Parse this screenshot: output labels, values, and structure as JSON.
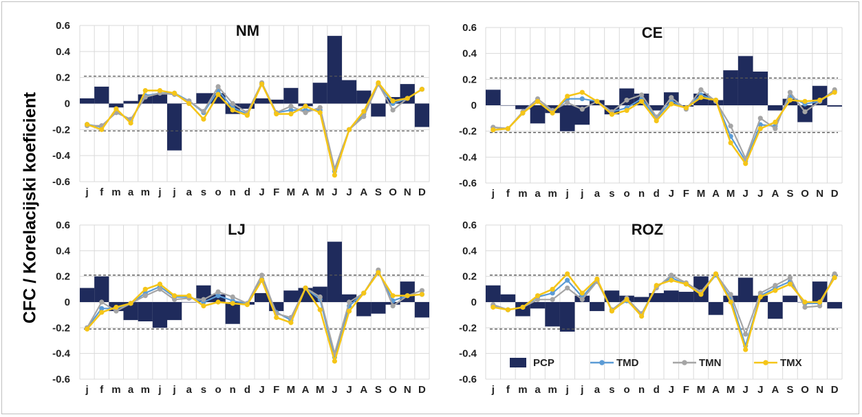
{
  "figure": {
    "ylabel": "CFC / Korelacijski koeficient"
  },
  "legend": {
    "items": [
      {
        "name": "PCP",
        "kind": "bar",
        "color": "#1f2b5c"
      },
      {
        "name": "TMD",
        "kind": "line",
        "color": "#5b9bd5"
      },
      {
        "name": "TMN",
        "kind": "line",
        "color": "#a5a5a5"
      },
      {
        "name": "TMX",
        "kind": "line",
        "color": "#f5c518"
      }
    ]
  },
  "colors": {
    "PCP": "#1f2b5c",
    "TMD": "#5b9bd5",
    "TMN": "#a5a5a5",
    "TMX": "#f5c518",
    "threshold": "#555555",
    "grid": "#d9d9d9"
  },
  "chart_data": [
    {
      "type": "bar+line",
      "title": "NM",
      "categories": [
        "j",
        "f",
        "m",
        "a",
        "m",
        "j",
        "j",
        "a",
        "s",
        "o",
        "n",
        "d",
        "J",
        "F",
        "M",
        "A",
        "M",
        "J",
        "J",
        "A",
        "S",
        "O",
        "N",
        "D"
      ],
      "ylim": [
        -0.6,
        0.6
      ],
      "yticks": [
        "0.6",
        "0.4",
        "0.2",
        "0",
        "-0.2",
        "-0.4",
        "-0.6"
      ],
      "grid": true,
      "significance_lines": [
        0.21,
        -0.21
      ],
      "series": [
        {
          "name": "PCP",
          "type": "bar",
          "values": [
            0.04,
            0.13,
            -0.03,
            0.02,
            0.07,
            0.07,
            -0.36,
            0.0,
            0.08,
            0.08,
            -0.08,
            -0.04,
            0.04,
            0.03,
            0.12,
            -0.02,
            0.16,
            0.52,
            0.18,
            0.1,
            -0.1,
            0.05,
            0.15,
            -0.18
          ]
        },
        {
          "name": "TMD",
          "type": "line",
          "values": [
            -0.16,
            -0.18,
            -0.06,
            -0.13,
            0.06,
            0.08,
            0.08,
            0.02,
            -0.07,
            0.1,
            -0.03,
            -0.08,
            0.15,
            -0.07,
            -0.05,
            -0.05,
            -0.05,
            -0.52,
            -0.2,
            -0.08,
            0.15,
            0.0,
            0.04,
            0.11
          ]
        },
        {
          "name": "TMN",
          "type": "line",
          "values": [
            -0.17,
            -0.17,
            -0.07,
            -0.12,
            0.05,
            0.08,
            0.07,
            0.02,
            -0.06,
            0.13,
            0.0,
            -0.07,
            0.16,
            -0.07,
            -0.02,
            -0.07,
            -0.03,
            -0.5,
            -0.2,
            -0.1,
            0.15,
            -0.05,
            0.04,
            0.11
          ]
        },
        {
          "name": "TMX",
          "type": "line",
          "values": [
            -0.16,
            -0.2,
            -0.04,
            -0.15,
            0.1,
            0.1,
            0.08,
            0.0,
            -0.12,
            0.07,
            -0.05,
            -0.09,
            0.15,
            -0.08,
            -0.08,
            -0.02,
            -0.07,
            -0.55,
            -0.2,
            -0.06,
            0.16,
            0.02,
            0.04,
            0.11
          ]
        }
      ]
    },
    {
      "type": "bar+line",
      "title": "CE",
      "categories": [
        "j",
        "f",
        "m",
        "a",
        "m",
        "j",
        "j",
        "a",
        "s",
        "o",
        "n",
        "d",
        "J",
        "F",
        "M",
        "A",
        "M",
        "J",
        "J",
        "A",
        "S",
        "O",
        "N",
        "D"
      ],
      "ylim": [
        -0.6,
        0.6
      ],
      "yticks": [
        "0.6",
        "0.4",
        "0.2",
        "0",
        "-0.2",
        "-0.4",
        "-0.6"
      ],
      "grid": true,
      "significance_lines": [
        0.21,
        -0.21
      ],
      "series": [
        {
          "name": "PCP",
          "type": "bar",
          "values": [
            0.12,
            0.0,
            -0.03,
            -0.14,
            -0.06,
            -0.2,
            -0.15,
            0.04,
            -0.07,
            0.13,
            0.09,
            -0.04,
            0.1,
            -0.01,
            0.09,
            0.04,
            0.27,
            0.38,
            0.26,
            -0.04,
            0.05,
            -0.13,
            0.15,
            -0.01
          ]
        },
        {
          "name": "TMD",
          "type": "line",
          "values": [
            -0.17,
            -0.18,
            -0.06,
            0.03,
            -0.05,
            0.05,
            0.05,
            0.03,
            -0.05,
            -0.02,
            0.05,
            -0.1,
            0.03,
            -0.02,
            0.08,
            0.04,
            -0.24,
            -0.43,
            -0.15,
            -0.16,
            0.07,
            0.01,
            0.03,
            0.11
          ]
        },
        {
          "name": "TMN",
          "type": "line",
          "values": [
            -0.17,
            -0.18,
            -0.05,
            0.05,
            -0.04,
            0.02,
            -0.03,
            0.03,
            -0.05,
            0.04,
            0.08,
            -0.09,
            0.06,
            -0.03,
            0.12,
            0.03,
            -0.16,
            -0.41,
            -0.1,
            -0.18,
            0.1,
            -0.05,
            0.03,
            0.12
          ]
        },
        {
          "name": "TMX",
          "type": "line",
          "values": [
            -0.19,
            -0.18,
            -0.06,
            0.03,
            -0.06,
            0.07,
            0.1,
            0.03,
            -0.07,
            -0.04,
            0.03,
            -0.12,
            0.01,
            -0.02,
            0.06,
            0.04,
            -0.29,
            -0.45,
            -0.18,
            -0.13,
            0.04,
            0.03,
            0.04,
            0.1
          ]
        }
      ]
    },
    {
      "type": "bar+line",
      "title": "LJ",
      "categories": [
        "j",
        "f",
        "m",
        "a",
        "m",
        "j",
        "j",
        "a",
        "s",
        "o",
        "n",
        "d",
        "J",
        "F",
        "M",
        "A",
        "M",
        "J",
        "J",
        "A",
        "S",
        "O",
        "N",
        "D"
      ],
      "ylim": [
        -0.6,
        0.6
      ],
      "yticks": [
        "0.6",
        "0.4",
        "0.2",
        "0",
        "-0.2",
        "-0.4",
        "-0.6"
      ],
      "grid": true,
      "significance_lines": [
        0.21,
        -0.21
      ],
      "series": [
        {
          "name": "PCP",
          "type": "bar",
          "values": [
            0.11,
            0.2,
            -0.07,
            -0.14,
            -0.15,
            -0.2,
            -0.14,
            0.0,
            0.13,
            0.06,
            -0.17,
            -0.02,
            0.07,
            -0.07,
            0.09,
            0.11,
            0.12,
            0.47,
            0.06,
            -0.11,
            -0.09,
            -0.02,
            0.16,
            -0.12
          ]
        },
        {
          "name": "TMD",
          "type": "line",
          "values": [
            -0.2,
            -0.05,
            -0.05,
            -0.01,
            0.07,
            0.12,
            0.04,
            0.04,
            0.0,
            0.05,
            0.01,
            -0.01,
            0.18,
            -0.08,
            -0.14,
            0.11,
            0.02,
            -0.43,
            -0.03,
            0.07,
            0.24,
            0.01,
            0.05,
            0.06
          ]
        },
        {
          "name": "TMN",
          "type": "line",
          "values": [
            -0.2,
            0.0,
            -0.07,
            -0.01,
            0.05,
            0.1,
            0.02,
            0.03,
            0.02,
            0.08,
            0.04,
            -0.01,
            0.21,
            -0.09,
            -0.12,
            0.11,
            0.04,
            -0.4,
            0.0,
            0.07,
            0.25,
            -0.03,
            0.05,
            0.09
          ]
        },
        {
          "name": "TMX",
          "type": "line",
          "values": [
            -0.21,
            -0.08,
            -0.04,
            -0.01,
            0.1,
            0.14,
            0.05,
            0.05,
            -0.03,
            0.0,
            -0.01,
            -0.02,
            0.17,
            -0.12,
            -0.16,
            0.11,
            -0.06,
            -0.46,
            -0.07,
            0.07,
            0.23,
            0.05,
            0.05,
            0.06
          ]
        }
      ]
    },
    {
      "type": "bar+line",
      "title": "ROZ",
      "categories": [
        "j",
        "f",
        "m",
        "a",
        "m",
        "j",
        "j",
        "a",
        "s",
        "o",
        "n",
        "d",
        "J",
        "F",
        "M",
        "A",
        "M",
        "J",
        "J",
        "A",
        "S",
        "O",
        "N",
        "D"
      ],
      "ylim": [
        -0.6,
        0.6
      ],
      "yticks": [
        "0.6",
        "0.4",
        "0.2",
        "0",
        "-0.2",
        "-0.4",
        "-0.6"
      ],
      "grid": true,
      "significance_lines": [
        0.21,
        -0.21
      ],
      "legend_position": "bottom",
      "series": [
        {
          "name": "PCP",
          "type": "bar",
          "values": [
            0.13,
            0.06,
            -0.11,
            -0.05,
            -0.19,
            -0.23,
            0.05,
            -0.07,
            0.09,
            0.05,
            0.04,
            0.07,
            0.09,
            0.08,
            0.2,
            -0.1,
            0.05,
            0.19,
            0.05,
            -0.13,
            0.05,
            0.0,
            0.16,
            -0.05
          ]
        },
        {
          "name": "TMD",
          "type": "line",
          "values": [
            -0.03,
            -0.06,
            -0.04,
            0.04,
            0.07,
            0.17,
            0.04,
            0.17,
            -0.06,
            0.01,
            -0.09,
            0.12,
            0.19,
            0.14,
            0.07,
            0.21,
            0.03,
            -0.34,
            0.05,
            0.11,
            0.16,
            -0.01,
            -0.01,
            0.2
          ]
        },
        {
          "name": "TMN",
          "type": "line",
          "values": [
            -0.02,
            -0.06,
            -0.04,
            0.02,
            0.02,
            0.11,
            0.02,
            0.16,
            -0.06,
            0.03,
            -0.09,
            0.11,
            0.21,
            0.15,
            0.08,
            0.22,
            0.06,
            -0.25,
            0.07,
            0.13,
            0.19,
            -0.04,
            -0.03,
            0.22
          ]
        },
        {
          "name": "TMX",
          "type": "line",
          "values": [
            -0.04,
            -0.06,
            -0.04,
            0.05,
            0.1,
            0.22,
            0.07,
            0.18,
            -0.07,
            0.02,
            -0.11,
            0.13,
            0.17,
            0.14,
            0.06,
            0.22,
            0.0,
            -0.37,
            0.04,
            0.09,
            0.14,
            0.0,
            0.0,
            0.19
          ]
        }
      ]
    }
  ]
}
